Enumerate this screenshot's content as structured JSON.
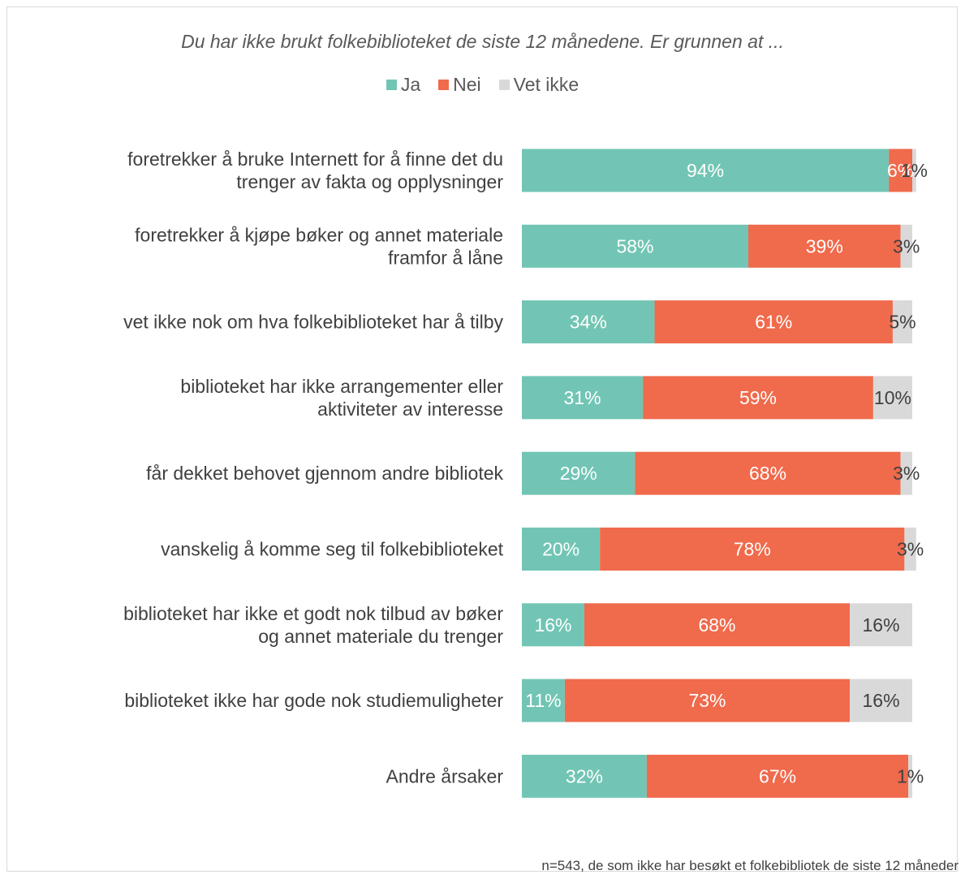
{
  "chart_data": {
    "type": "bar",
    "orientation": "horizontal",
    "stacked": true,
    "percent": true,
    "title": "Du har ikke brukt folkebiblioteket de siste 12 månedene. Er grunnen at ...",
    "legend_position": "top",
    "grid": false,
    "xlim": [
      0,
      100
    ],
    "categories": [
      [
        "foretrekker å bruke Internett for å finne det du",
        "trenger av fakta og opplysninger"
      ],
      [
        "foretrekker å kjøpe bøker og annet materiale",
        "framfor å låne"
      ],
      [
        "vet ikke nok om hva folkebiblioteket har å tilby"
      ],
      [
        "biblioteket har ikke arrangementer eller",
        "aktiviteter av interesse"
      ],
      [
        "får dekket behovet gjennom andre bibliotek"
      ],
      [
        "vanskelig å komme seg til folkebiblioteket"
      ],
      [
        "biblioteket har ikke et godt nok tilbud av bøker",
        "og annet materiale du trenger"
      ],
      [
        "biblioteket ikke har gode nok studiemuligheter"
      ],
      [
        "Andre årsaker"
      ]
    ],
    "series": [
      {
        "name": "Ja",
        "color": "#72c5b4",
        "values": [
          94,
          58,
          34,
          31,
          29,
          20,
          16,
          11,
          32
        ]
      },
      {
        "name": "Nei",
        "color": "#f06a4c",
        "values": [
          6,
          39,
          61,
          59,
          68,
          78,
          68,
          73,
          67
        ]
      },
      {
        "name": "Vet ikke",
        "color": "#d9d9d9",
        "values": [
          1,
          3,
          5,
          10,
          3,
          3,
          16,
          16,
          1
        ]
      }
    ],
    "data_labels": [
      [
        "94%",
        "6%",
        "1%"
      ],
      [
        "58%",
        "39%",
        "3%"
      ],
      [
        "34%",
        "61%",
        "5%"
      ],
      [
        "31%",
        "59%",
        "10%"
      ],
      [
        "29%",
        "68%",
        "3%"
      ],
      [
        "20%",
        "78%",
        "3%"
      ],
      [
        "16%",
        "68%",
        "16%"
      ],
      [
        "11%",
        "73%",
        "16%"
      ],
      [
        "32%",
        "67%",
        "1%"
      ]
    ]
  },
  "footnote": "n=543, de som ikke har besøkt et folkebibliotek de siste 12 måneder"
}
